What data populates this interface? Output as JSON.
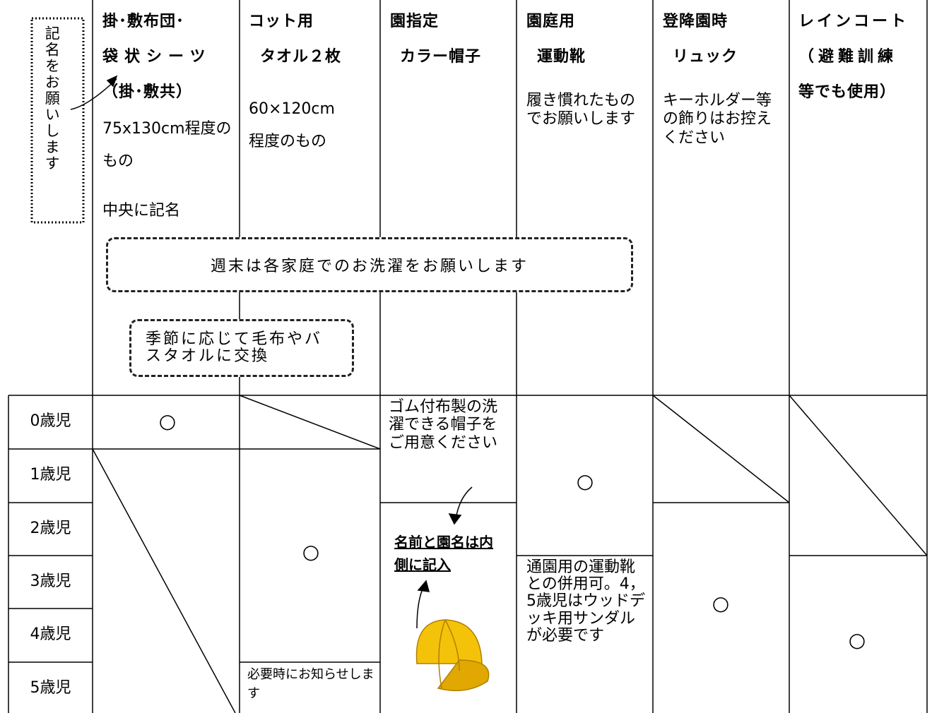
{
  "side_label": "記名をお願いします",
  "columns": [
    {
      "title": [
        "掛･敷布団･",
        "袋状シーツ",
        "（掛･敷共）"
      ],
      "note": [
        "75x130cm程度のもの",
        "中央に記名"
      ]
    },
    {
      "title": [
        "コット用",
        "タオル２枚"
      ],
      "note": [
        "60×120cm",
        "程度のもの"
      ]
    },
    {
      "title": [
        "園指定",
        "カラー帽子"
      ],
      "note": []
    },
    {
      "title": [
        "園庭用",
        "運動靴"
      ],
      "note": [
        "履き慣れたものでお願いします"
      ]
    },
    {
      "title": [
        "登降園時",
        "リュック"
      ],
      "note": [
        "キーホルダー等の飾りはお控えください"
      ]
    },
    {
      "title": [
        "レインコート",
        "（避難訓練",
        "等でも使用）"
      ],
      "note": []
    }
  ],
  "notices": [
    "週末は各家庭でのお洗濯をお願いします",
    "季節に応じて毛布やバスタオルに交換"
  ],
  "ages": [
    "0歳児",
    "1歳児",
    "2歳児",
    "3歳児",
    "4歳児",
    "5歳児"
  ],
  "body": {
    "mark": "○",
    "cot_note": "必要時にお知らせします",
    "cap_note": "ゴム付布製の洗濯できる帽子をご用意ください",
    "cap_label": "名前と園名は内側に記入",
    "shoes_note": "通園用の運動靴との併用可。4，5歳児はウッドデッキ用サンダルが必要です"
  }
}
